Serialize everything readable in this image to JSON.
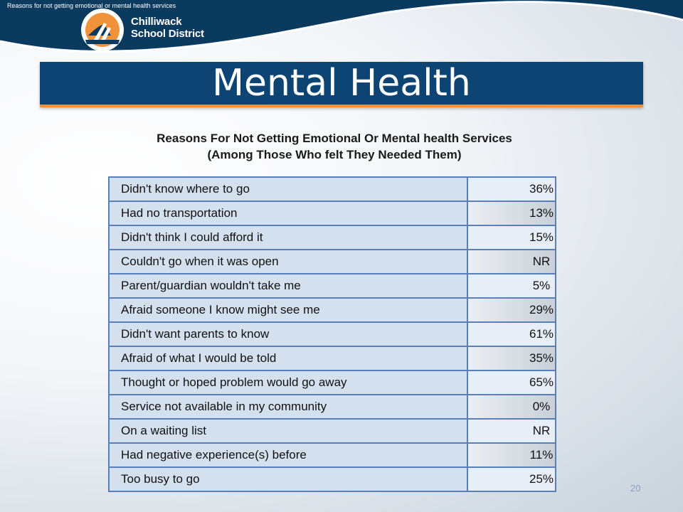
{
  "header": {
    "caption": "Reasons for not getting emotional or mental health services",
    "logo": {
      "line1": "Chilliwack",
      "line2": "School District"
    }
  },
  "slide": {
    "title": "Mental Health",
    "subtitle_line1": "Reasons For Not Getting Emotional Or Mental health Services",
    "subtitle_line2": "(Among Those Who felt They Needed Them)",
    "page_number": "20"
  },
  "table": {
    "rows": [
      {
        "reason": "Didn't know where to go",
        "value": "36%"
      },
      {
        "reason": "Had no transportation",
        "value": "13%"
      },
      {
        "reason": "Didn't think I could afford it",
        "value": "15%"
      },
      {
        "reason": "Couldn't go when it was open",
        "value": "NR"
      },
      {
        "reason": "Parent/guardian wouldn't take me",
        "value": "5%"
      },
      {
        "reason": "Afraid someone I know might see me",
        "value": "29%"
      },
      {
        "reason": "Didn't want parents to know",
        "value": "61%"
      },
      {
        "reason": "Afraid of what I would be told",
        "value": "35%"
      },
      {
        "reason": "Thought or hoped problem would go away",
        "value": "65%"
      },
      {
        "reason": "Service not available in my community",
        "value": "0%"
      },
      {
        "reason": "On a waiting list",
        "value": "NR"
      },
      {
        "reason": "Had negative experience(s) before",
        "value": "11%"
      },
      {
        "reason": "Too busy to go",
        "value": "25%"
      }
    ]
  },
  "colors": {
    "header_navy": "#0b3a5f",
    "title_bar": "#0e4473",
    "accent_orange": "#f0923a",
    "table_border": "#5b7fb5",
    "cell_fill": "#d5e0ef"
  }
}
